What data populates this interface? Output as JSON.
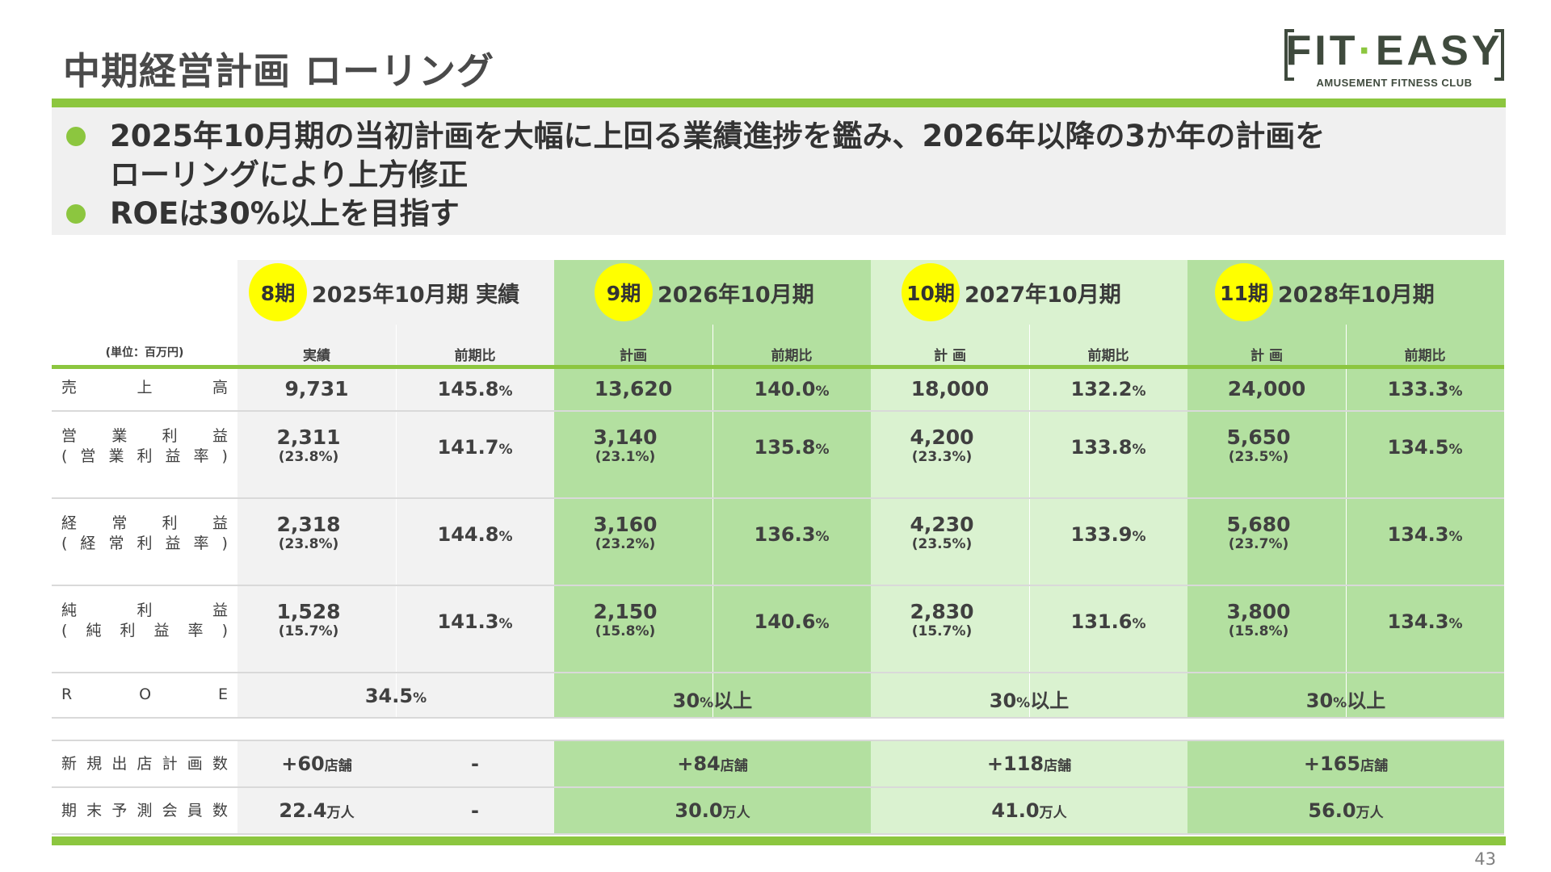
{
  "title": "中期経営計画 ローリング",
  "logo": {
    "main_a": "FIT",
    "main_b": "·",
    "main_c": "EASY",
    "sub": "AMUSEMENT FITNESS CLUB"
  },
  "bullets": [
    "2025年10月期の当初計画を大幅に上回る業績進捗を鑑み、2026年以降の3か年の計画を\nローリングにより上方修正",
    "ROEは30%以上を目指す"
  ],
  "table": {
    "unit": "(単位：百万円)",
    "columns": [
      {
        "badge": "8期",
        "title": "2025年10月期 実績",
        "sub_a": "実績",
        "sub_b": "前期比"
      },
      {
        "badge": "9期",
        "title": "2026年10月期",
        "sub_a": "計画",
        "sub_b": "前期比"
      },
      {
        "badge": "10期",
        "title": "2027年10月期",
        "sub_a": "計 画",
        "sub_b": "前期比"
      },
      {
        "badge": "11期",
        "title": "2028年10月期",
        "sub_a": "計 画",
        "sub_b": "前期比"
      }
    ],
    "rows": {
      "sales": {
        "label": [
          "売",
          "上",
          "高"
        ],
        "values": [
          "9,731",
          "13,620",
          "18,000",
          "24,000"
        ],
        "yoy": [
          "145.8",
          "140.0",
          "132.2",
          "133.3"
        ]
      },
      "op": {
        "label1": [
          "営",
          "業",
          "利",
          "益"
        ],
        "label2": [
          "(",
          "営",
          "業",
          "利",
          "益",
          "率",
          ")"
        ],
        "values": [
          "2,311",
          "3,140",
          "4,200",
          "5,650"
        ],
        "rates": [
          "(23.8%)",
          "(23.1%)",
          "(23.3%)",
          "(23.5%)"
        ],
        "yoy": [
          "141.7",
          "135.8",
          "133.8",
          "134.5"
        ]
      },
      "ord": {
        "label1": [
          "経",
          "常",
          "利",
          "益"
        ],
        "label2": [
          "(",
          "経",
          "常",
          "利",
          "益",
          "率",
          ")"
        ],
        "values": [
          "2,318",
          "3,160",
          "4,230",
          "5,680"
        ],
        "rates": [
          "(23.8%)",
          "(23.2%)",
          "(23.5%)",
          "(23.7%)"
        ],
        "yoy": [
          "144.8",
          "136.3",
          "133.9",
          "134.3"
        ]
      },
      "net": {
        "label1": [
          "純",
          "利",
          "益"
        ],
        "label2": [
          "(",
          "純",
          "利",
          "益",
          "率",
          ")"
        ],
        "values": [
          "1,528",
          "2,150",
          "2,830",
          "3,800"
        ],
        "rates": [
          "(15.7%)",
          "(15.8%)",
          "(15.7%)",
          "(15.8%)"
        ],
        "yoy": [
          "141.3",
          "140.6",
          "131.6",
          "134.3"
        ]
      },
      "roe": {
        "label": [
          "R",
          "O",
          "E"
        ],
        "v1": "34.5",
        "v2": "30",
        "v3": "30",
        "v4": "30",
        "suffix": "以上"
      }
    },
    "pct_sign": "%",
    "stores": {
      "label": [
        "新",
        "規",
        "出",
        "店",
        "計",
        "画",
        "数"
      ],
      "values": [
        "+60",
        "+84",
        "+118",
        "+165"
      ],
      "unit": "店舗",
      "dash": "-"
    },
    "members": {
      "label": [
        "期",
        "末",
        "予",
        "測",
        "会",
        "員",
        "数"
      ],
      "values": [
        "22.4",
        "30.0",
        "41.0",
        "56.0"
      ],
      "unit": "万人",
      "dash": "-"
    }
  },
  "page_number": "43"
}
